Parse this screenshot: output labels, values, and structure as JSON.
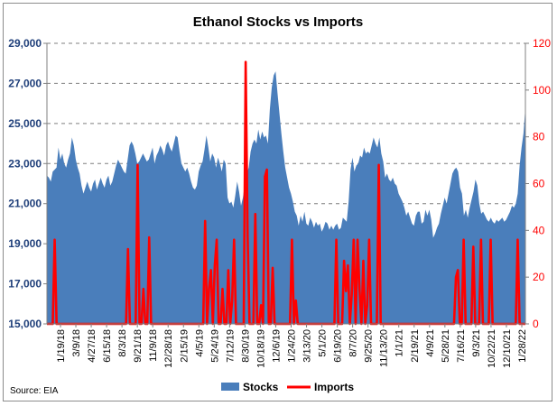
{
  "chart_data": {
    "type": "area+line",
    "title": "Ethanol Stocks vs Imports",
    "source": "Source: EIA",
    "left_axis": {
      "ylim": [
        15000,
        29000
      ],
      "ticks": [
        15000,
        17000,
        19000,
        21000,
        23000,
        25000,
        27000,
        29000
      ],
      "tick_labels": [
        "15,000",
        "17,000",
        "19,000",
        "21,000",
        "23,000",
        "25,000",
        "27,000",
        "29,000"
      ]
    },
    "right_axis": {
      "ylim": [
        0,
        120
      ],
      "ticks": [
        0,
        20,
        40,
        60,
        80,
        100,
        120
      ],
      "tick_labels": [
        "0",
        "20",
        "40",
        "60",
        "80",
        "100",
        "120"
      ]
    },
    "x_tick_labels": [
      "1/19/18",
      "3/9/18",
      "4/27/18",
      "6/15/18",
      "8/3/18",
      "9/21/18",
      "11/9/18",
      "12/28/18",
      "2/15/19",
      "4/5/19",
      "5/24/19",
      "7/12/19",
      "8/30/19",
      "10/18/19",
      "12/6/19",
      "1/24/20",
      "3/13/20",
      "5/1/20",
      "6/19/20",
      "8/7/20",
      "9/25/20",
      "11/13/20",
      "1/1/21",
      "2/19/21",
      "4/9/21",
      "5/28/21",
      "7/16/21",
      "9/3/21",
      "10/22/21",
      "12/10/21",
      "1/28/22"
    ],
    "grid": true,
    "legend_position": "bottom",
    "series": [
      {
        "name": "Stocks",
        "type": "area",
        "color": "#4a7ebb",
        "axis": "left",
        "values": [
          22400,
          22300,
          22100,
          22600,
          22700,
          22800,
          23800,
          23200,
          23500,
          23000,
          22800,
          23200,
          23500,
          24300,
          23900,
          23200,
          22800,
          22500,
          21900,
          21500,
          21800,
          22100,
          21800,
          21600,
          22000,
          22200,
          21700,
          22000,
          22300,
          22000,
          21800,
          22200,
          22400,
          21900,
          22100,
          22500,
          22900,
          23200,
          23000,
          22800,
          22600,
          22500,
          23200,
          23900,
          24100,
          23900,
          23500,
          23000,
          23100,
          23300,
          23500,
          23300,
          23100,
          23200,
          23500,
          23800,
          23000,
          23400,
          23600,
          23900,
          23700,
          23400,
          23900,
          24100,
          23800,
          23600,
          24000,
          24400,
          24300,
          23600,
          23000,
          22800,
          22600,
          22800,
          22500,
          22100,
          21800,
          21700,
          21900,
          22600,
          22900,
          23100,
          23700,
          24400,
          23800,
          23100,
          23500,
          23300,
          22800,
          23300,
          23000,
          22600,
          23200,
          23000,
          21300,
          21000,
          21100,
          20800,
          21400,
          22100,
          21600,
          20900,
          21300,
          22000,
          22500,
          22800,
          23600,
          24000,
          24200,
          24000,
          24700,
          24200,
          24600,
          24300,
          24400,
          24000,
          25700,
          26800,
          27400,
          27600,
          26500,
          25500,
          24500,
          23600,
          22800,
          22300,
          21800,
          21500,
          21100,
          20600,
          20400,
          19900,
          20400,
          20100,
          20600,
          20000,
          19900,
          20300,
          20100,
          19800,
          20100,
          19900,
          20000,
          19600,
          19800,
          20100,
          20000,
          19700,
          19900,
          19700,
          19900,
          20000,
          19700,
          19800,
          20300,
          20200,
          20100,
          21100,
          22700,
          23300,
          22600,
          22900,
          23000,
          23400,
          23300,
          23800,
          23500,
          23600,
          23500,
          23900,
          24300,
          24000,
          23800,
          24300,
          23500,
          23100,
          22300,
          22500,
          22200,
          22100,
          22300,
          22000,
          21900,
          21500,
          21300,
          21100,
          20800,
          20400,
          20600,
          20300,
          20000,
          19900,
          20400,
          20600,
          20600,
          20000,
          20100,
          20700,
          20400,
          20700,
          20200,
          19300,
          19500,
          19800,
          20000,
          20500,
          20900,
          21300,
          21000,
          21500,
          22000,
          22500,
          22700,
          22800,
          22600,
          21800,
          21500,
          20400,
          20700,
          20300,
          20800,
          21200,
          21600,
          22200,
          21900,
          21000,
          20500,
          20600,
          20400,
          20200,
          20100,
          20300,
          20100,
          20000,
          20200,
          20100,
          20200,
          20300,
          20100,
          20200,
          20400,
          20600,
          20900,
          20800,
          21000,
          21500,
          22900,
          23800,
          24500,
          25800
        ]
      },
      {
        "name": "Imports",
        "type": "line",
        "color": "#ff0000",
        "axis": "right",
        "values": [
          0,
          0,
          0,
          0,
          36,
          0,
          0,
          0,
          0,
          0,
          0,
          0,
          0,
          0,
          0,
          0,
          0,
          0,
          0,
          0,
          0,
          0,
          0,
          0,
          0,
          0,
          0,
          0,
          0,
          0,
          0,
          0,
          0,
          0,
          0,
          0,
          0,
          0,
          0,
          0,
          0,
          0,
          32,
          0,
          0,
          0,
          0,
          68,
          0,
          0,
          15,
          0,
          0,
          37,
          0,
          0,
          0,
          0,
          0,
          0,
          0,
          0,
          0,
          0,
          0,
          0,
          0,
          0,
          0,
          0,
          0,
          0,
          0,
          0,
          0,
          0,
          0,
          0,
          0,
          0,
          0,
          0,
          44,
          0,
          15,
          23,
          0,
          25,
          36,
          0,
          0,
          15,
          0,
          0,
          23,
          0,
          10,
          36,
          0,
          0,
          0,
          0,
          0,
          112,
          38,
          0,
          0,
          0,
          47,
          0,
          0,
          8,
          0,
          63,
          66,
          0,
          0,
          24,
          0,
          0,
          0,
          0,
          0,
          0,
          0,
          0,
          0,
          36,
          0,
          10,
          0,
          0,
          0,
          0,
          0,
          0,
          0,
          0,
          0,
          0,
          0,
          0,
          0,
          0,
          0,
          0,
          0,
          0,
          0,
          0,
          36,
          0,
          0,
          0,
          27,
          14,
          25,
          0,
          13,
          36,
          0,
          36,
          15,
          0,
          27,
          0,
          8,
          36,
          0,
          0,
          0,
          0,
          68,
          0,
          0,
          0,
          0,
          0,
          0,
          0,
          0,
          0,
          0,
          0,
          0,
          0,
          0,
          0,
          0,
          0,
          0,
          0,
          0,
          0,
          0,
          0,
          0,
          0,
          0,
          0,
          0,
          0,
          0,
          0,
          0,
          0,
          0,
          0,
          0,
          0,
          0,
          0,
          20,
          23,
          0,
          0,
          36,
          0,
          0,
          0,
          0,
          33,
          0,
          0,
          0,
          36,
          0,
          0,
          0,
          0,
          36,
          0,
          0,
          0,
          0,
          0,
          0,
          0,
          0,
          0,
          0,
          0,
          0,
          0,
          36,
          0,
          0,
          0,
          0
        ]
      }
    ]
  }
}
